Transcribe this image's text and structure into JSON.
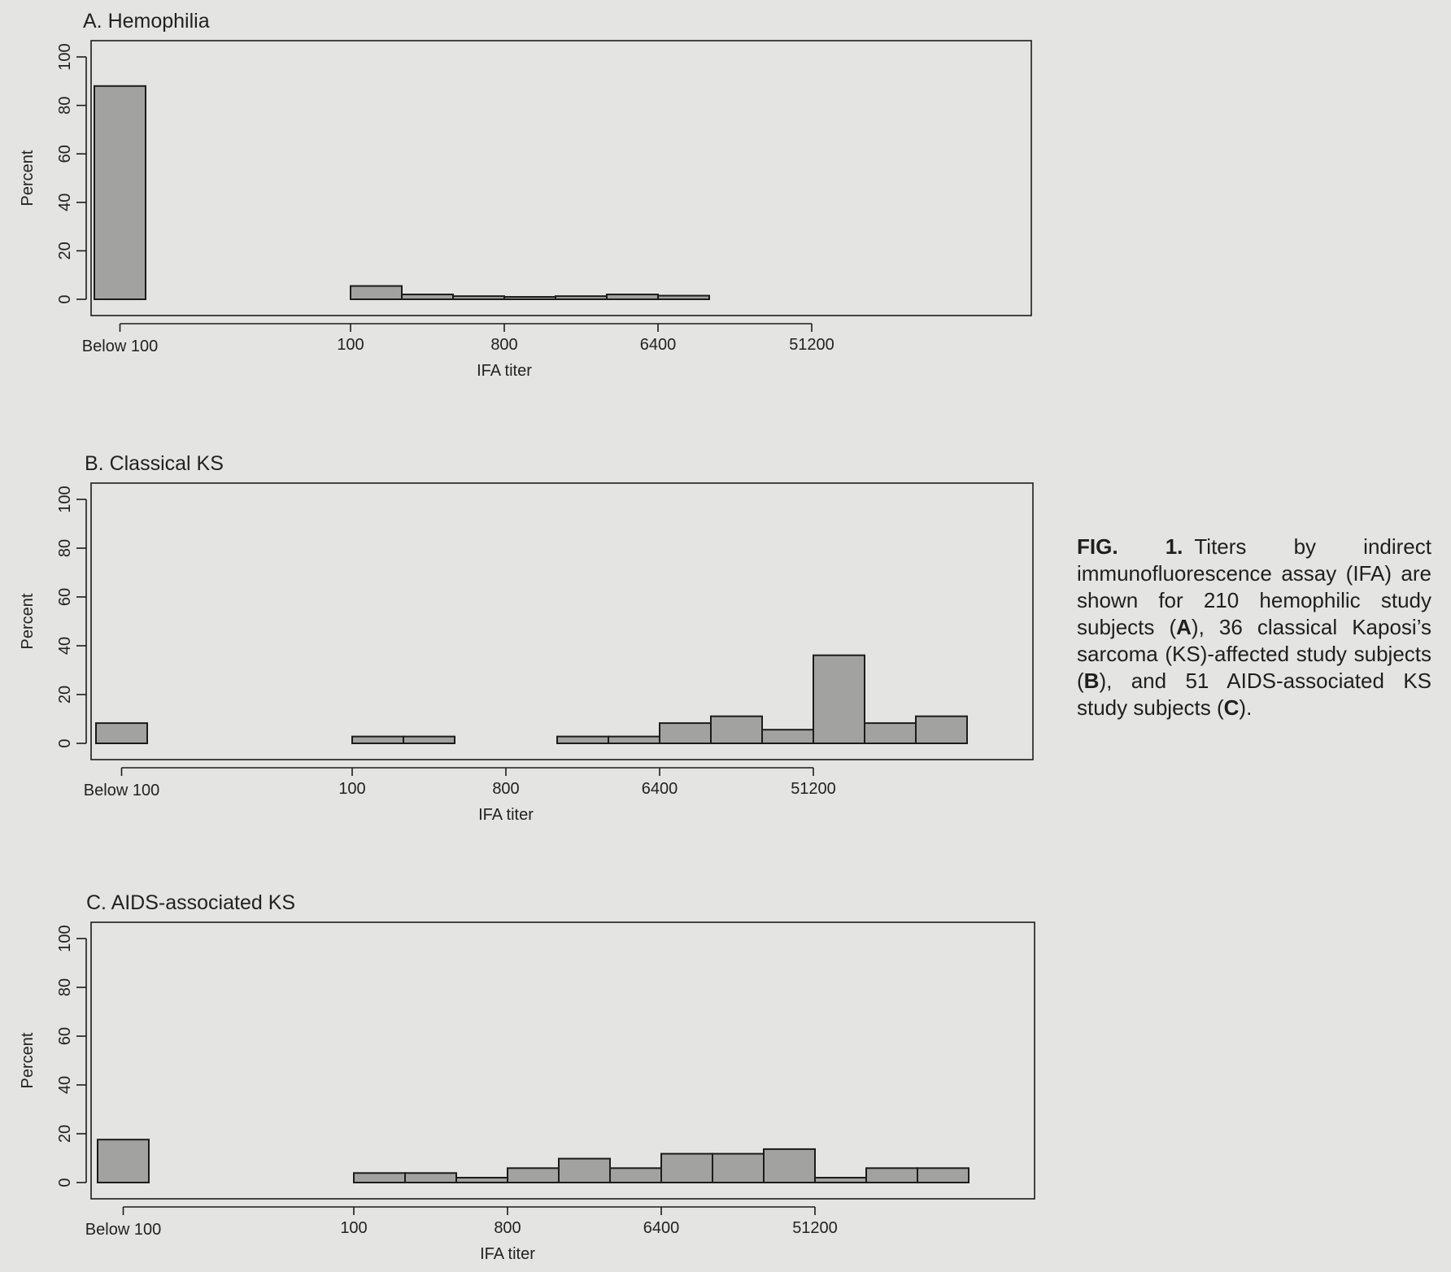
{
  "chart_data": [
    {
      "type": "bar",
      "title": "A.  Hemophilia",
      "xlabel": "IFA titer",
      "ylabel": "Percent",
      "ylim": [
        0,
        100
      ],
      "y_ticks": [
        0,
        20,
        40,
        60,
        80,
        100
      ],
      "x_ticks": [
        "Below 100",
        "100",
        "800",
        "6400",
        "51200"
      ],
      "categories": [
        "Below 100",
        "100",
        "200",
        "400",
        "800",
        "1600",
        "3200",
        "6400"
      ],
      "values": [
        88,
        5.5,
        2,
        1.3,
        1,
        1.3,
        2,
        1.5
      ]
    },
    {
      "type": "bar",
      "title": "B.  Classical KS",
      "xlabel": "IFA titer",
      "ylabel": "Percent",
      "ylim": [
        0,
        100
      ],
      "y_ticks": [
        0,
        20,
        40,
        60,
        80,
        100
      ],
      "x_ticks": [
        "Below 100",
        "100",
        "800",
        "6400",
        "51200"
      ],
      "categories": [
        "Below 100",
        "100",
        "200",
        "400",
        "800",
        "1600",
        "3200",
        "6400",
        "12800",
        "25600",
        "51200",
        "102400",
        "204800"
      ],
      "values": [
        8.3,
        2.8,
        2.8,
        0,
        0,
        2.8,
        2.8,
        8.3,
        11.1,
        5.6,
        36.1,
        8.3,
        11.1
      ]
    },
    {
      "type": "bar",
      "title": "C.  AIDS-associated KS",
      "xlabel": "IFA titer",
      "ylabel": "Percent",
      "ylim": [
        0,
        100
      ],
      "y_ticks": [
        0,
        20,
        40,
        60,
        80,
        100
      ],
      "x_ticks": [
        "Below 100",
        "100",
        "800",
        "6400",
        "51200"
      ],
      "categories": [
        "Below 100",
        "100",
        "200",
        "400",
        "800",
        "1600",
        "3200",
        "6400",
        "12800",
        "25600",
        "51200",
        "102400",
        "204800"
      ],
      "values": [
        17.6,
        3.9,
        3.9,
        2,
        5.9,
        9.8,
        5.9,
        11.8,
        11.8,
        13.7,
        2,
        5.9,
        5.9
      ]
    }
  ],
  "caption": {
    "label": "FIG. 1.",
    "parts": [
      {
        "text": "Titers by indirect immunofluorescence assay (IFA) are shown for 210 hemophilic study subjects (",
        "bold": false
      },
      {
        "text": "A",
        "bold": true
      },
      {
        "text": "), 36 classical Kaposi’s sarcoma (KS)-affected study subjects (",
        "bold": false
      },
      {
        "text": "B",
        "bold": true
      },
      {
        "text": "), and 51 AIDS-associated KS study subjects (",
        "bold": false
      },
      {
        "text": "C",
        "bold": true
      },
      {
        "text": ").",
        "bold": false
      }
    ]
  }
}
